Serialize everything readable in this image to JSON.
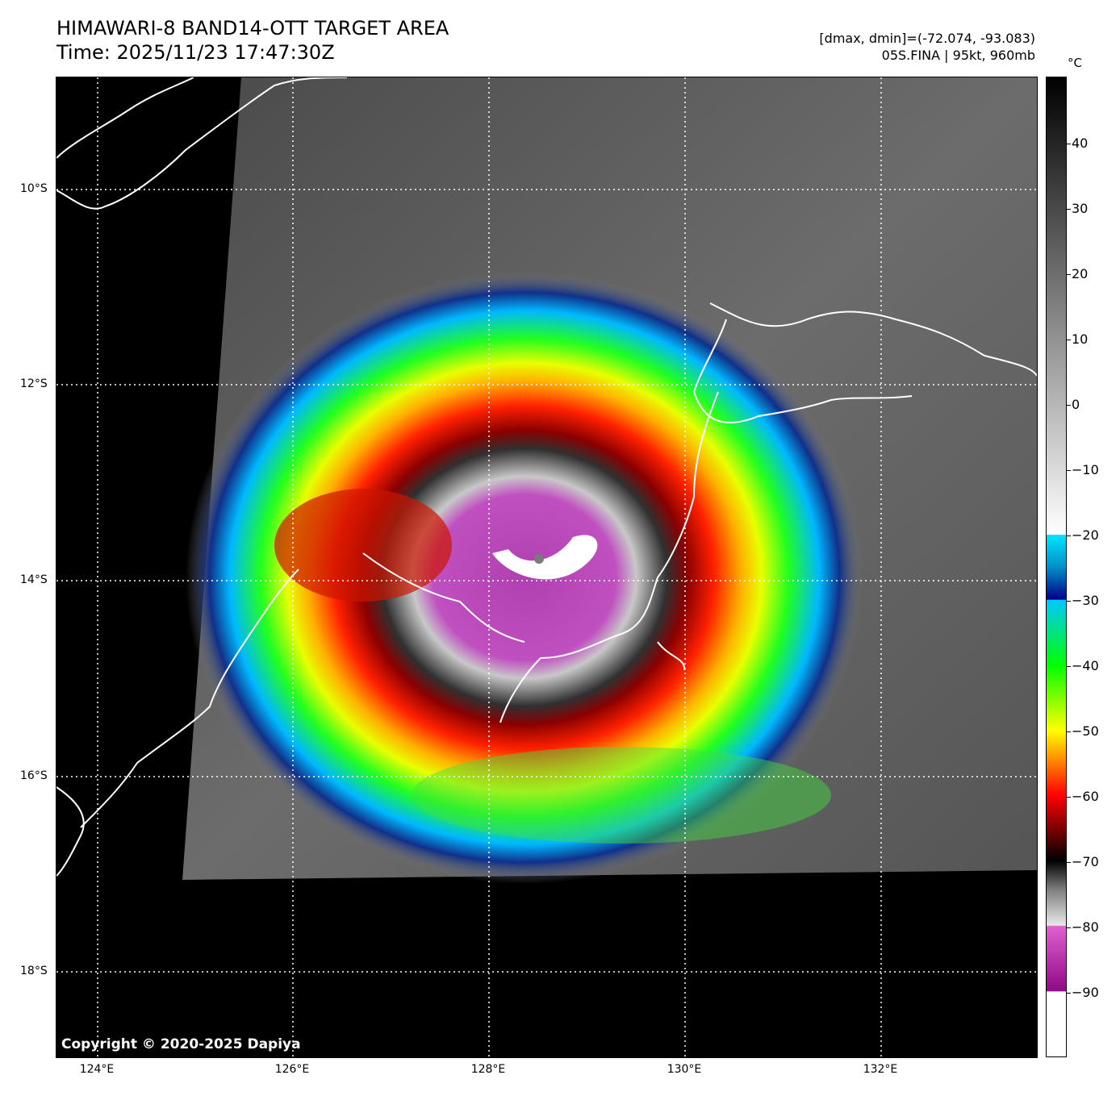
{
  "header": {
    "title_line1": "HIMAWARI-8 BAND14-OTT TARGET AREA",
    "title_line2": "Time: 2025/11/23 17:47:30Z",
    "range": "[dmax, dmin]=(-72.074, -93.083)",
    "storm": "05S.FINA | 95kt, 960mb"
  },
  "copyright": "Copyright © 2020-2025 Dapiya",
  "axes": {
    "lat_labels": [
      "10°S",
      "12°S",
      "14°S",
      "16°S",
      "18°S"
    ],
    "lon_labels": [
      "124°E",
      "126°E",
      "128°E",
      "130°E",
      "132°E"
    ]
  },
  "colorbar": {
    "unit": "°C",
    "labels": [
      "40",
      "30",
      "20",
      "10",
      "0",
      "−10",
      "−20",
      "−30",
      "−40",
      "−50",
      "−60",
      "−70",
      "−80",
      "−90"
    ],
    "colors": {
      "warm": "#000000",
      "cyan": "#00e5ff",
      "blue": "#00008a",
      "green": "#00ff00",
      "yellow": "#ffff00",
      "red": "#ff0000",
      "magenta": "#8e0a86",
      "coldest": "#ffffff"
    }
  }
}
